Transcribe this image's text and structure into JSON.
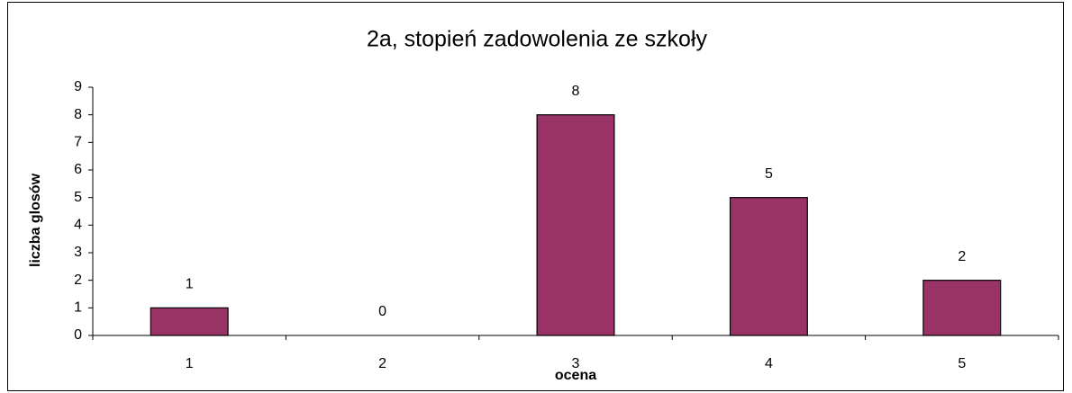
{
  "chart_data": {
    "type": "bar",
    "title": "2a, stopień zadowolenia ze szkoły",
    "x_label": "ocena",
    "y_label": "liczba glosów",
    "categories": [
      "1",
      "2",
      "3",
      "4",
      "5"
    ],
    "values": [
      1,
      0,
      8,
      5,
      2
    ],
    "color": "#993366",
    "ylim": [
      0,
      9
    ],
    "yticks": [
      0,
      1,
      2,
      3,
      4,
      5,
      6,
      7,
      8,
      9
    ],
    "grid": false
  }
}
